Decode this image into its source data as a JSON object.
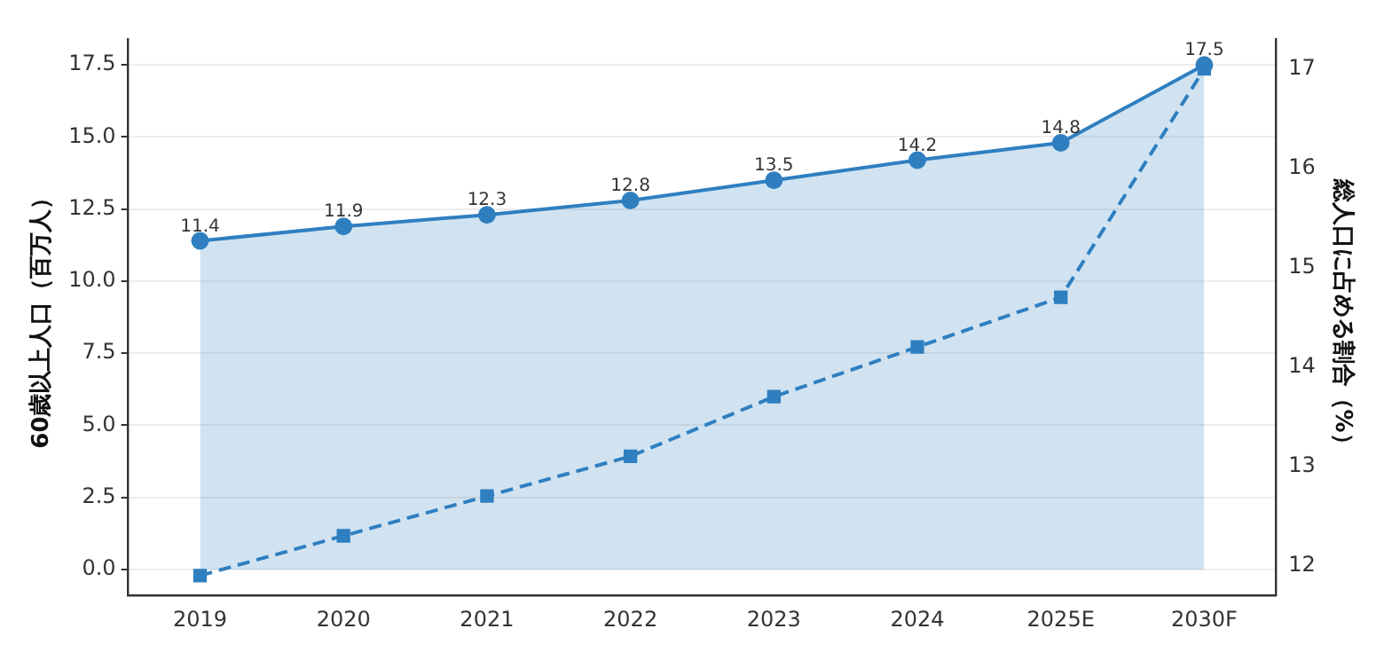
{
  "chart_data": {
    "type": "line",
    "ylabel": "60歳以上人口（百万人）",
    "y2label": "総人口に占める割合（%）",
    "categories": [
      "2019",
      "2020",
      "2021",
      "2022",
      "2023",
      "2024",
      "2025E",
      "2030F"
    ],
    "series": [
      {
        "type": "area",
        "color": "#2f7fc0",
        "values": [
          11.4,
          11.9,
          12.3,
          12.8,
          13.5,
          14.2,
          14.8,
          17.5
        ],
        "value_labels": [
          "11.4",
          "11.9",
          "12.3",
          "12.8",
          "13.5",
          "14.2",
          "14.8",
          "17.5"
        ],
        "marker": "circle",
        "line_style": "solid"
      },
      {
        "type": "line",
        "color": "#2f7fc0",
        "axis": "y2",
        "values": [
          11.9,
          12.3,
          12.7,
          13.1,
          13.7,
          14.2,
          14.7,
          17.0
        ],
        "marker": "square",
        "line_style": "dashed"
      }
    ],
    "ylim": [
      -0.9,
      18.4
    ],
    "yticks": [
      {
        "value": 0,
        "label": "0.0"
      },
      2.5,
      {
        "value": 5,
        "label": "5.0"
      },
      {
        "value": 7.5,
        "label": "7.5"
      },
      {
        "value": 10,
        "label": "10.0"
      },
      12.5,
      {
        "value": 15,
        "label": "15.0"
      },
      17.5
    ],
    "y2lim": [
      11.7,
      17.3
    ],
    "y2ticks": [
      12,
      13,
      14,
      15,
      16,
      17
    ],
    "grid": "y",
    "legend": false
  }
}
